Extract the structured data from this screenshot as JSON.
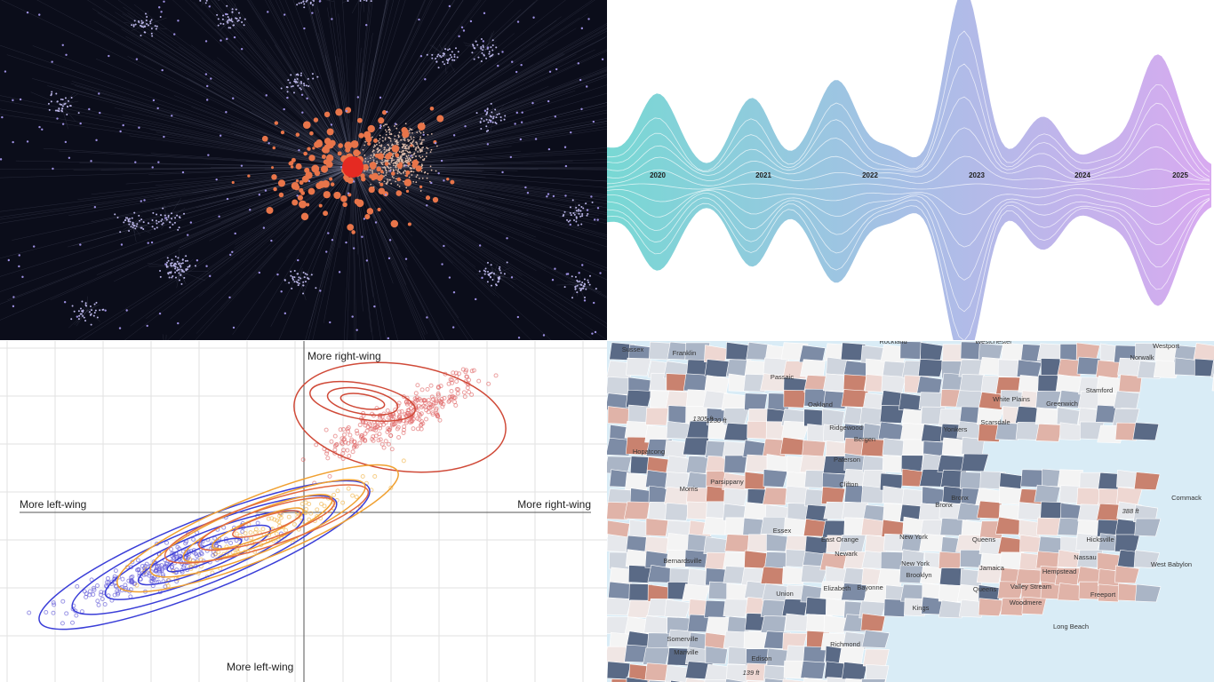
{
  "streamgraph": {
    "year_labels": [
      "2020",
      "2021",
      "2022",
      "2023",
      "2024",
      "2025"
    ]
  },
  "scatter": {
    "labels": {
      "top": "More right-wing",
      "left": "More left-wing",
      "right": "More right-wing",
      "bottom": "More left-wing"
    }
  },
  "map": {
    "place_labels": [
      "Sussex",
      "Franklin",
      "Passaic",
      "Rockland",
      "Westchester",
      "Westport",
      "Norwalk",
      "Stamford",
      "Greenwich",
      "White Plains",
      "Scarsdale",
      "Yonkers",
      "Oakland",
      "Ridgewood",
      "Bergen",
      "Paterson",
      "Clifton",
      "Hopatcong",
      "Parsippany",
      "Morris",
      "Essex",
      "East Orange",
      "Newark",
      "Bernardsville",
      "Elizabeth",
      "Bayonne",
      "Union",
      "New York",
      "New York",
      "Brooklyn",
      "Bronx",
      "Bronx",
      "Queens",
      "Jamaica",
      "Queens",
      "Kings",
      "Richmond",
      "Hicksville",
      "Nassau",
      "Hempstead",
      "Valley Stream",
      "Freeport",
      "Woodmere",
      "Long Beach",
      "West Babylon",
      "Commack"
    ],
    "elevation_labels": [
      "1305 ft",
      "1230 ft",
      "388 ft",
      "139 ft"
    ],
    "bottom_labels": [
      "Somerville",
      "Manville",
      "Edison"
    ]
  }
}
